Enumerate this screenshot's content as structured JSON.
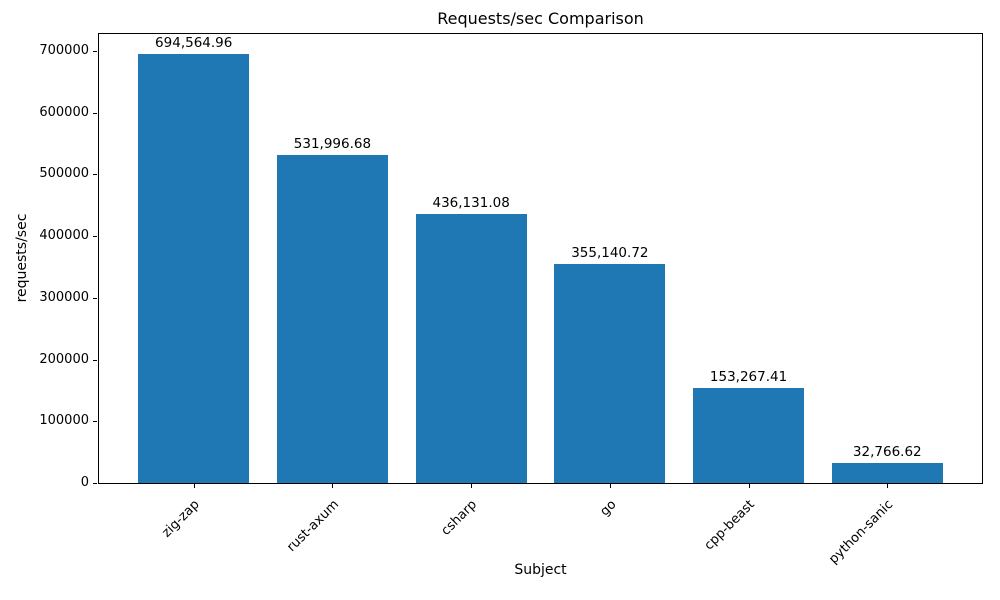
{
  "chart_data": {
    "type": "bar",
    "title": "Requests/sec Comparison",
    "xlabel": "Subject",
    "ylabel": "requests/sec",
    "categories": [
      "zig-zap",
      "rust-axum",
      "csharp",
      "go",
      "cpp-beast",
      "python-sanic"
    ],
    "values": [
      694564.96,
      531996.68,
      436131.08,
      355140.72,
      153267.41,
      32766.62
    ],
    "bar_value_labels": [
      "694,564.96",
      "531,996.68",
      "436,131.08",
      "355,140.72",
      "153,267.41",
      "32,766.62"
    ],
    "yticks": [
      0,
      100000,
      200000,
      300000,
      400000,
      500000,
      600000,
      700000
    ],
    "ylim": [
      0,
      729293
    ],
    "bar_color": "#1f77b4",
    "axis_color": "#000000",
    "x_tick_rotation_deg": 45,
    "grid": false,
    "legend": false
  }
}
